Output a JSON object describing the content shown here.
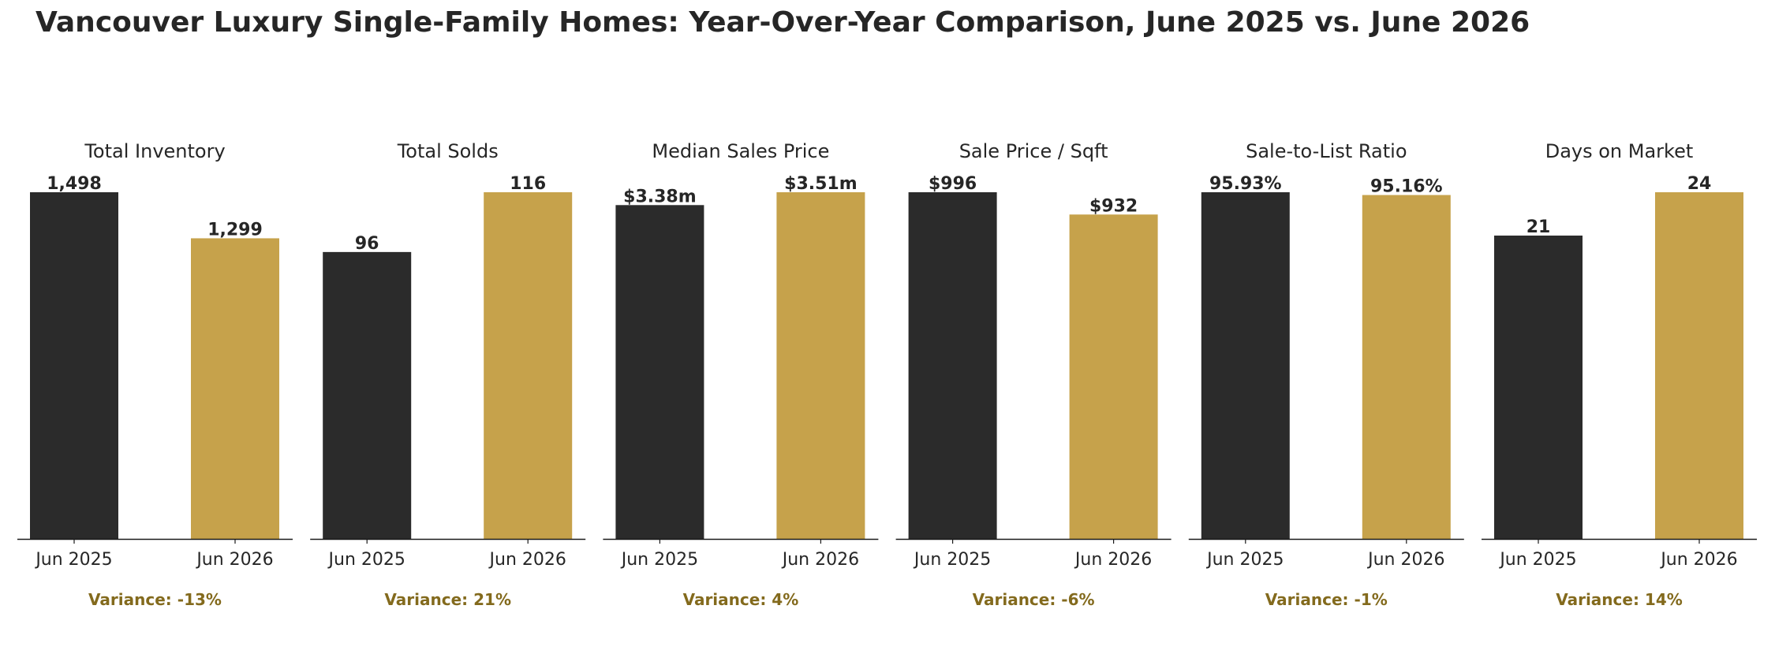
{
  "title": "Vancouver Luxury Single-Family Homes: Year-Over-Year Comparison, June 2025 vs. June 2026",
  "colors": {
    "jun_2025": "#2b2b2b",
    "jun_2026": "#c6a24b",
    "variance_text": "#836a1d",
    "text": "#262626",
    "axis": "#1a1a1a"
  },
  "chart_data": [
    {
      "type": "bar",
      "title": "Total Inventory",
      "categories": [
        "Jun 2025",
        "Jun 2026"
      ],
      "values": [
        1498,
        1299
      ],
      "labels": [
        "1,498",
        "1,299"
      ],
      "ylim": [
        0,
        1498
      ],
      "variance": "Variance: -13%"
    },
    {
      "type": "bar",
      "title": "Total Solds",
      "categories": [
        "Jun 2025",
        "Jun 2026"
      ],
      "values": [
        96,
        116
      ],
      "labels": [
        "96",
        "116"
      ],
      "ylim": [
        0,
        116
      ],
      "variance": "Variance: 21%"
    },
    {
      "type": "bar",
      "title": "Median Sales Price",
      "categories": [
        "Jun 2025",
        "Jun 2026"
      ],
      "values": [
        3.38,
        3.51
      ],
      "labels": [
        "$3.38m",
        "$3.51m"
      ],
      "ylim": [
        0,
        3.51
      ],
      "variance": "Variance: 4%"
    },
    {
      "type": "bar",
      "title": "Sale Price / Sqft",
      "categories": [
        "Jun 2025",
        "Jun 2026"
      ],
      "values": [
        996,
        932
      ],
      "labels": [
        "$996",
        "$932"
      ],
      "ylim": [
        0,
        996
      ],
      "variance": "Variance: -6%"
    },
    {
      "type": "bar",
      "title": "Sale-to-List Ratio",
      "categories": [
        "Jun 2025",
        "Jun 2026"
      ],
      "values": [
        95.93,
        95.16
      ],
      "labels": [
        "95.93%",
        "95.16%"
      ],
      "ylim": [
        0,
        95.93
      ],
      "variance": "Variance: -1%"
    },
    {
      "type": "bar",
      "title": "Days on Market",
      "categories": [
        "Jun 2025",
        "Jun 2026"
      ],
      "values": [
        21,
        24
      ],
      "labels": [
        "21",
        "24"
      ],
      "ylim": [
        0,
        24
      ],
      "variance": "Variance: 14%"
    }
  ]
}
